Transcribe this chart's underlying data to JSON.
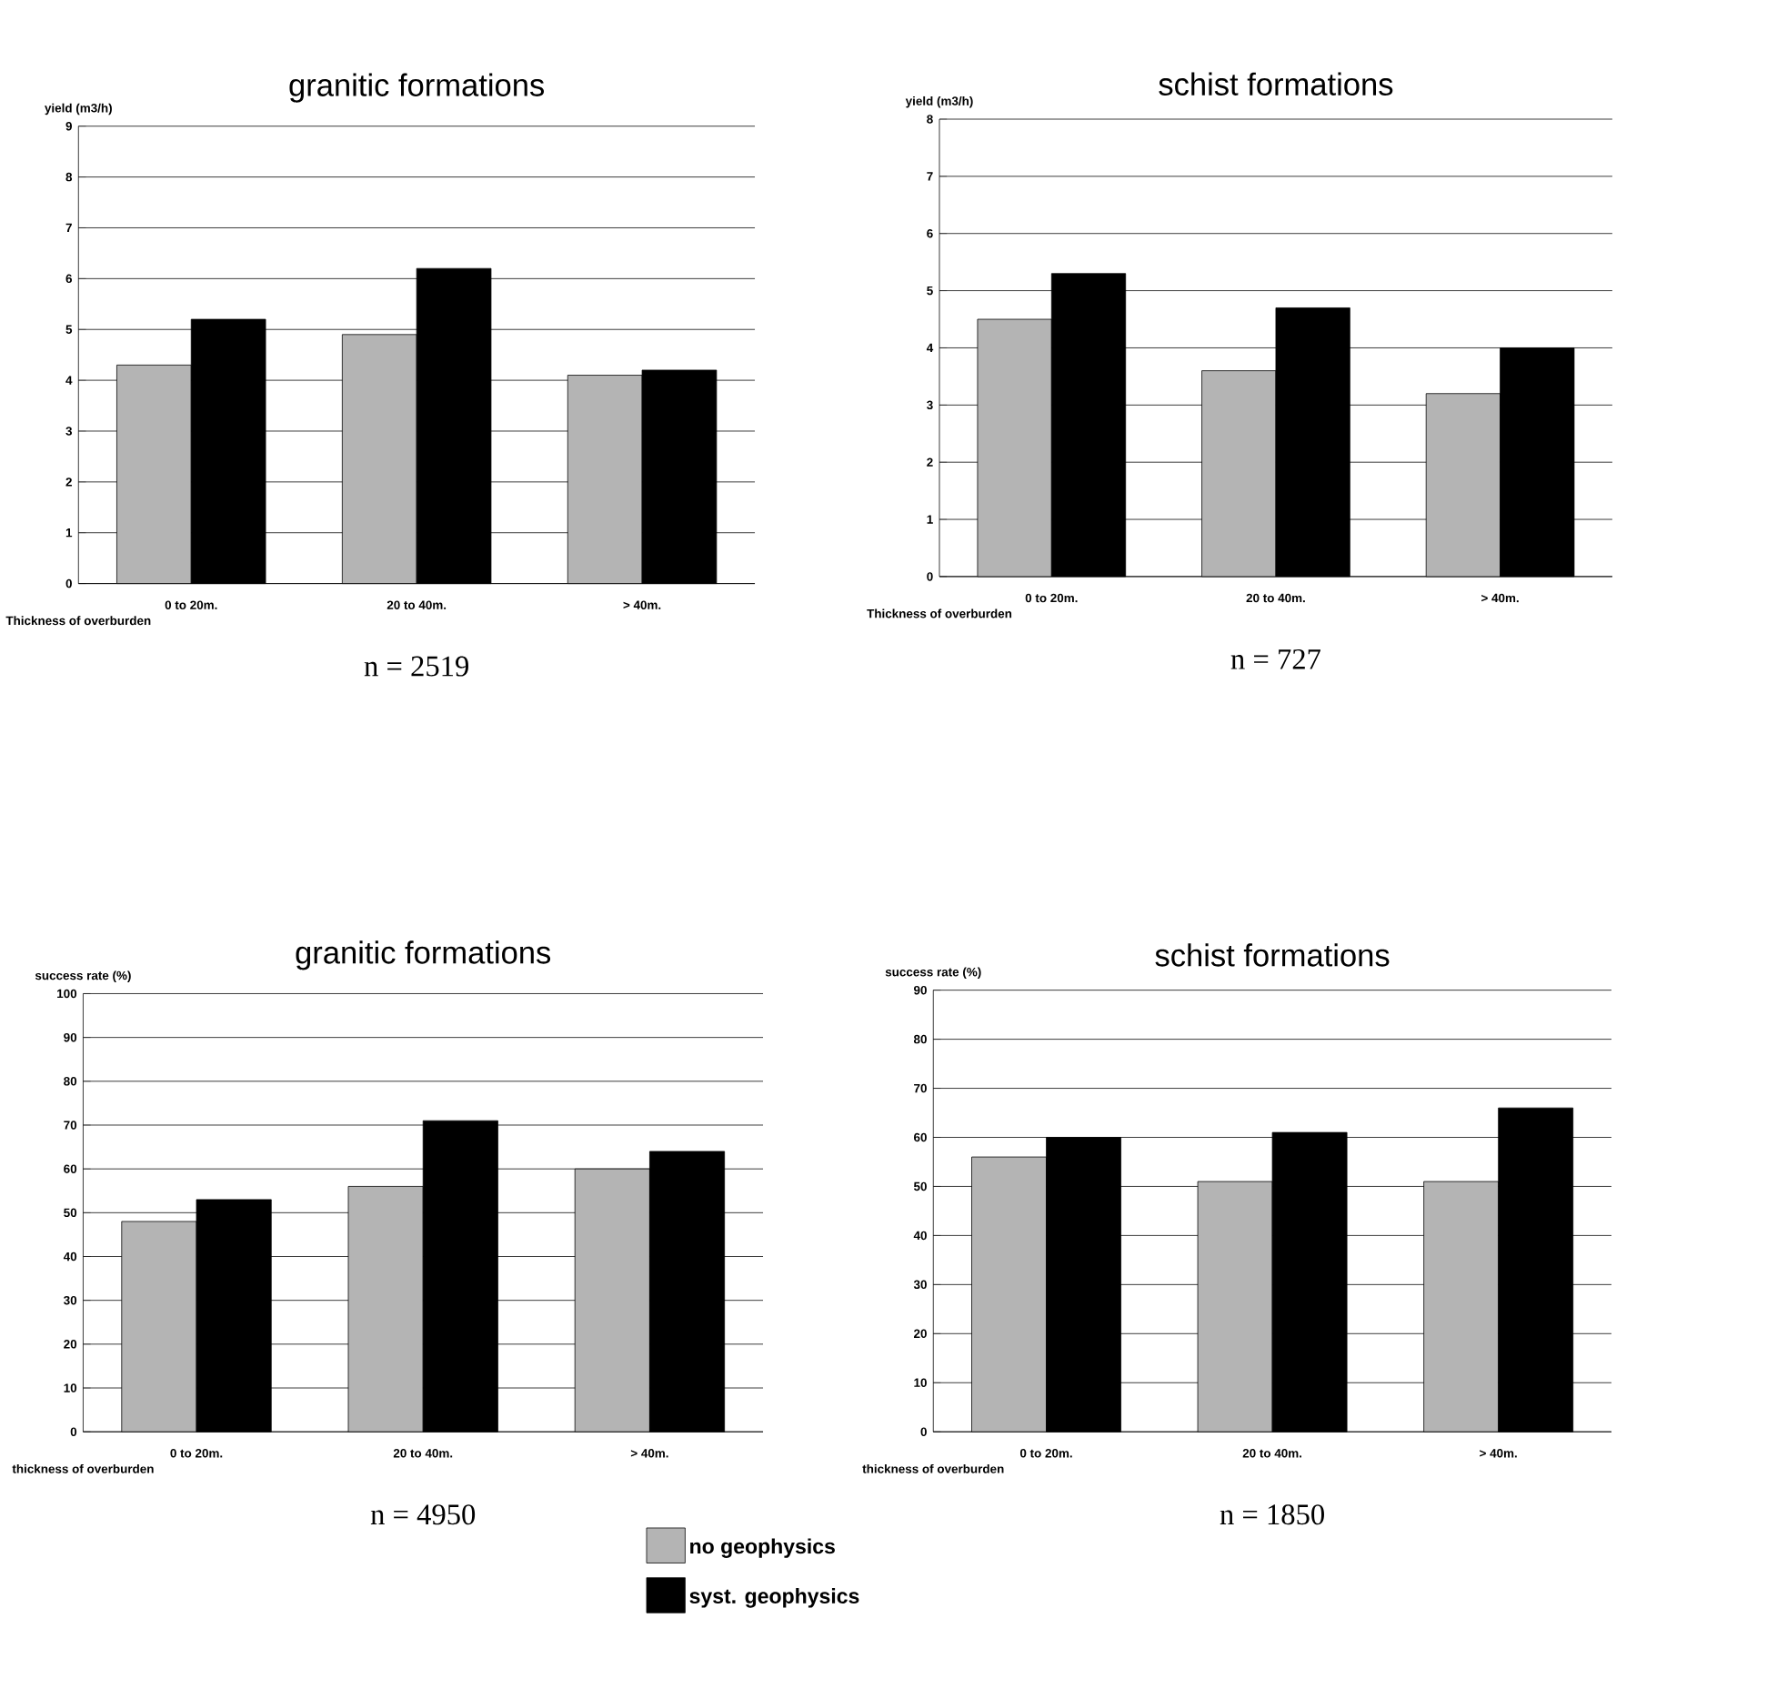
{
  "chart_data": [
    {
      "type": "bar",
      "title": "granitic formations",
      "ylabel": "yield (m3/h)",
      "xlabel": "Thickness of overburden",
      "categories": [
        "0 to 20m.",
        "20 to 40m.",
        "> 40m."
      ],
      "series": [
        {
          "color": "#b4b4b4",
          "values": [
            4.3,
            4.9,
            4.1
          ]
        },
        {
          "color": "#000000",
          "values": [
            5.2,
            6.2,
            4.2
          ]
        }
      ],
      "ylim": [
        0,
        9
      ],
      "yticks": [
        0,
        1,
        2,
        3,
        4,
        5,
        6,
        7,
        8,
        9
      ],
      "grid": "y",
      "annotations": [
        "n = 2519"
      ]
    },
    {
      "type": "bar",
      "title": "schist formations",
      "ylabel": "yield (m3/h)",
      "xlabel": "Thickness of overburden",
      "categories": [
        "0 to 20m.",
        "20 to 40m.",
        "> 40m."
      ],
      "series": [
        {
          "color": "#b4b4b4",
          "values": [
            4.5,
            3.6,
            3.2
          ]
        },
        {
          "color": "#000000",
          "values": [
            5.3,
            4.7,
            4.0
          ]
        }
      ],
      "ylim": [
        0,
        8
      ],
      "yticks": [
        0,
        1,
        2,
        3,
        4,
        5,
        6,
        7,
        8
      ],
      "grid": "y",
      "annotations": [
        "n = 727"
      ]
    },
    {
      "type": "bar",
      "title": "granitic formations",
      "ylabel": "success rate (%)",
      "xlabel": "thickness of overburden",
      "categories": [
        "0 to 20m.",
        "20 to 40m.",
        "> 40m."
      ],
      "series": [
        {
          "name": "no geophysics",
          "color": "#b4b4b4",
          "values": [
            48,
            56,
            60
          ]
        },
        {
          "name": "syst. geophysics",
          "color": "#000000",
          "values": [
            53,
            71,
            64
          ]
        }
      ],
      "ylim": [
        0,
        100
      ],
      "yticks": [
        0,
        10,
        20,
        30,
        40,
        50,
        60,
        70,
        80,
        90,
        100
      ],
      "grid": "y",
      "legend": "bottom",
      "annotations": [
        "n = 4950"
      ]
    },
    {
      "type": "bar",
      "title": "schist formations",
      "ylabel": "success rate (%)",
      "xlabel": "thickness of overburden",
      "categories": [
        "0 to 20m.",
        "20 to 40m.",
        "> 40m."
      ],
      "series": [
        {
          "color": "#b4b4b4",
          "values": [
            56,
            51,
            51
          ]
        },
        {
          "color": "#000000",
          "values": [
            60,
            61,
            66
          ]
        }
      ],
      "ylim": [
        0,
        90
      ],
      "yticks": [
        0,
        10,
        20,
        30,
        40,
        50,
        60,
        70,
        80,
        90
      ],
      "grid": "y",
      "annotations": [
        "n = 1850"
      ]
    }
  ]
}
